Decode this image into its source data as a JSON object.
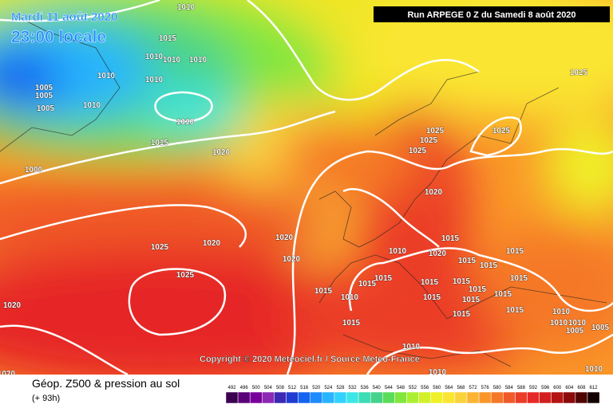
{
  "header": {
    "date": "Mardi 11 août 2020",
    "time": "23:00 locale",
    "run": "Run ARPEGE 0 Z du Samedi 8 août 2020"
  },
  "copyright": "Copyright © 2020 Meteociel.fr / Source Meteo-France",
  "footer": {
    "title": "Géop. Z500 & pression au sol",
    "lead": "(+ 93h)"
  },
  "isobar_labels": [
    "1010",
    "1015",
    "1010",
    "1010",
    "1010",
    "1010",
    "1010",
    "1005",
    "1005",
    "1005",
    "1010",
    "1010",
    "1015",
    "1020",
    "1000",
    "1025",
    "1025",
    "1025",
    "1025",
    "1025",
    "1020",
    "1020",
    "1020",
    "1020",
    "1025",
    "1025",
    "1010",
    "1015",
    "1020",
    "1015",
    "1015",
    "1015",
    "1015",
    "1015",
    "1015",
    "1015",
    "1015",
    "1015",
    "1015",
    "1010",
    "1015",
    "1015",
    "1015",
    "1015",
    "1015",
    "1010",
    "1010",
    "1010",
    "1005",
    "1005",
    "1015",
    "1010",
    "1010",
    "1010",
    "1020",
    "1020"
  ],
  "scale": {
    "labels": [
      492,
      496,
      500,
      504,
      508,
      512,
      516,
      520,
      524,
      528,
      532,
      536,
      540,
      544,
      548,
      552,
      556,
      560,
      564,
      568,
      572,
      576,
      580,
      584,
      588,
      592,
      596,
      600,
      604,
      608,
      612
    ],
    "colors": [
      "#3c0050",
      "#5a0078",
      "#78009a",
      "#8c28b4",
      "#3c28b4",
      "#1e3cd2",
      "#1464f0",
      "#1e8cff",
      "#28b4ff",
      "#32d2ff",
      "#3ce6e6",
      "#3cdcb4",
      "#46d28c",
      "#5adc5a",
      "#82e63c",
      "#aaf032",
      "#d2f028",
      "#f0f028",
      "#fae632",
      "#fad23c",
      "#fab432",
      "#fa9628",
      "#f57828",
      "#f05a28",
      "#eb3c28",
      "#e62828",
      "#d21e1e",
      "#b41414",
      "#8c0a0a",
      "#500505",
      "#140000"
    ]
  }
}
